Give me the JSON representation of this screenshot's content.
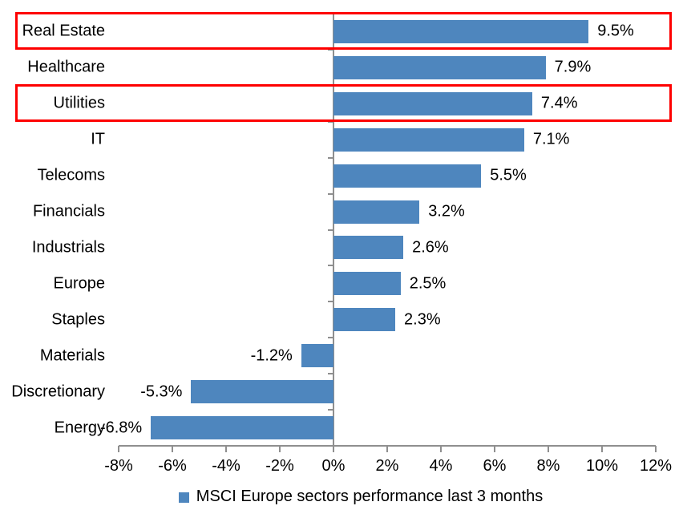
{
  "chart_data": {
    "type": "bar",
    "orientation": "horizontal",
    "categories": [
      "Real Estate",
      "Healthcare",
      "Utilities",
      "IT",
      "Telecoms",
      "Financials",
      "Industrials",
      "Europe",
      "Staples",
      "Materials",
      "Discretionary",
      "Energy"
    ],
    "values": [
      9.5,
      7.9,
      7.4,
      7.1,
      5.5,
      3.2,
      2.6,
      2.5,
      2.3,
      -1.2,
      -5.3,
      -6.8
    ],
    "value_labels": [
      "9.5%",
      "7.9%",
      "7.4%",
      "7.1%",
      "5.5%",
      "3.2%",
      "2.6%",
      "2.5%",
      "2.3%",
      "-1.2%",
      "-5.3%",
      "-6.8%"
    ],
    "x_tick_labels": [
      "-8%",
      "-6%",
      "-4%",
      "-2%",
      "0%",
      "2%",
      "4%",
      "6%",
      "8%",
      "10%",
      "12%"
    ],
    "x_tick_values": [
      -8,
      -6,
      -4,
      -2,
      0,
      2,
      4,
      6,
      8,
      10,
      12
    ],
    "xlim": [
      -8,
      12
    ],
    "grid": false,
    "legend_position": "bottom",
    "legend": [
      {
        "label": "MSCI Europe sectors performance last 3 months",
        "color": "#4e86be"
      }
    ],
    "bar_color": "#4e86be",
    "axis_color": "#8f8f8f",
    "highlighted_categories": [
      "Real Estate",
      "Utilities"
    ],
    "highlight_color": "#fe0000"
  }
}
